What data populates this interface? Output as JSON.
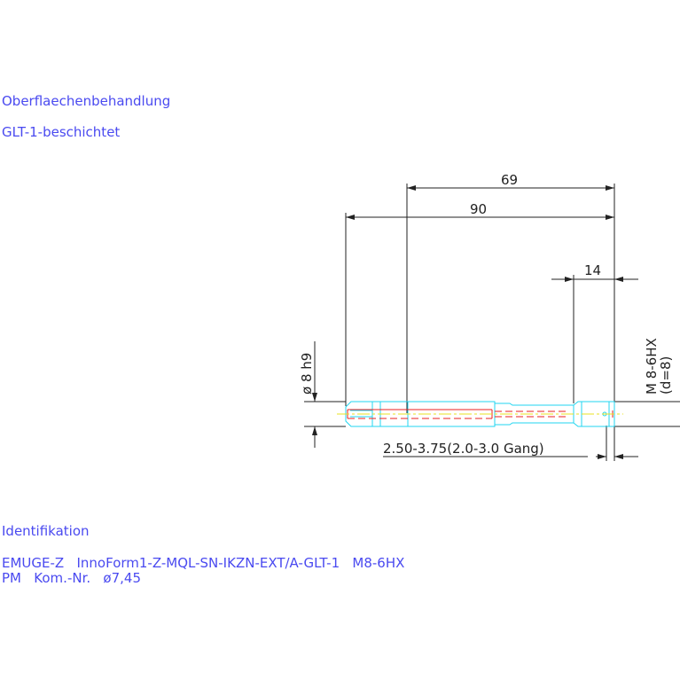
{
  "notes": {
    "surface_heading": "Oberflaechenbehandlung",
    "surface_value": "GLT-1-beschichtet",
    "ident_heading": "Identifikation",
    "ident_line1": "EMUGE-Z   InnoForm1-Z-MQL-SN-IKZN-EXT/A-GLT-1   M8-6HX",
    "ident_line2": "PM   Kom.-Nr.   ø7,45"
  },
  "dimensions": {
    "length_69": "69",
    "length_90": "90",
    "length_14": "14",
    "shank_diameter": "ø 8 h9",
    "thread": "M 8-6HX",
    "thread_d": "(d=8)",
    "chamfer": "2.50-3.75(2.0-3.0 Gang)"
  },
  "colors": {
    "text": "#4a4af0",
    "outline": "#22d6f0",
    "coolant": "#e82020",
    "centerline": "#e8e020",
    "dimension": "#222222"
  }
}
